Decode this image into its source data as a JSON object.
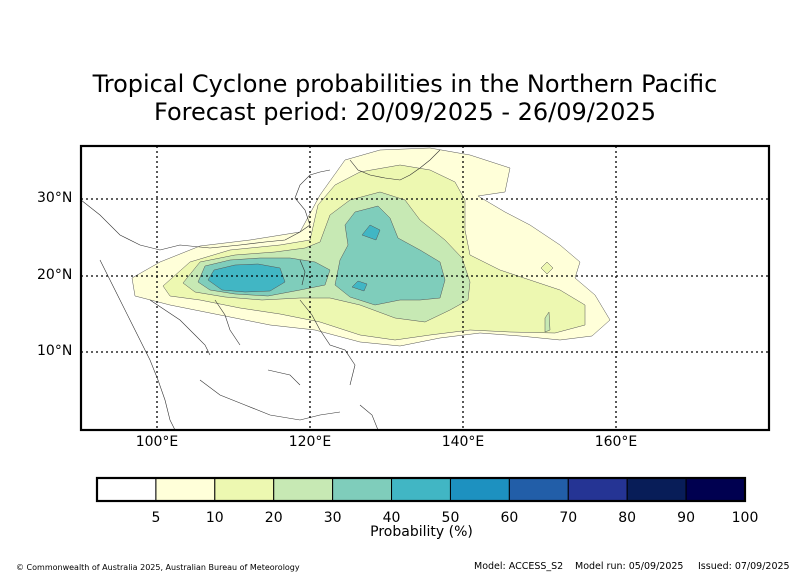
{
  "title": {
    "line1": "Tropical Cyclone probabilities in the Northern Pacific",
    "line2": "Forecast period: 20/09/2025 - 26/09/2025"
  },
  "map": {
    "lat_labels": [
      "30°N",
      "20°N",
      "10°N"
    ],
    "lon_labels": [
      "100°E",
      "120°E",
      "140°E",
      "160°E"
    ]
  },
  "colorbar": {
    "title": "Probability (%)",
    "ticks": [
      "5",
      "10",
      "20",
      "30",
      "40",
      "50",
      "60",
      "70",
      "80",
      "90",
      "100"
    ],
    "colors": [
      "#ffffff",
      "#ffffd9",
      "#edf8b1",
      "#c7e9b4",
      "#7fcdbb",
      "#41b6c4",
      "#1d91c0",
      "#225ea8",
      "#253494",
      "#081d58",
      "#000050"
    ]
  },
  "footer": {
    "copyright": "© Commonwealth of Australia 2025, Australian Bureau of Meteorology",
    "model": "Model: ACCESS_S2",
    "model_run": "Model run: 05/09/2025",
    "issued": "Issued: 07/09/2025"
  }
}
